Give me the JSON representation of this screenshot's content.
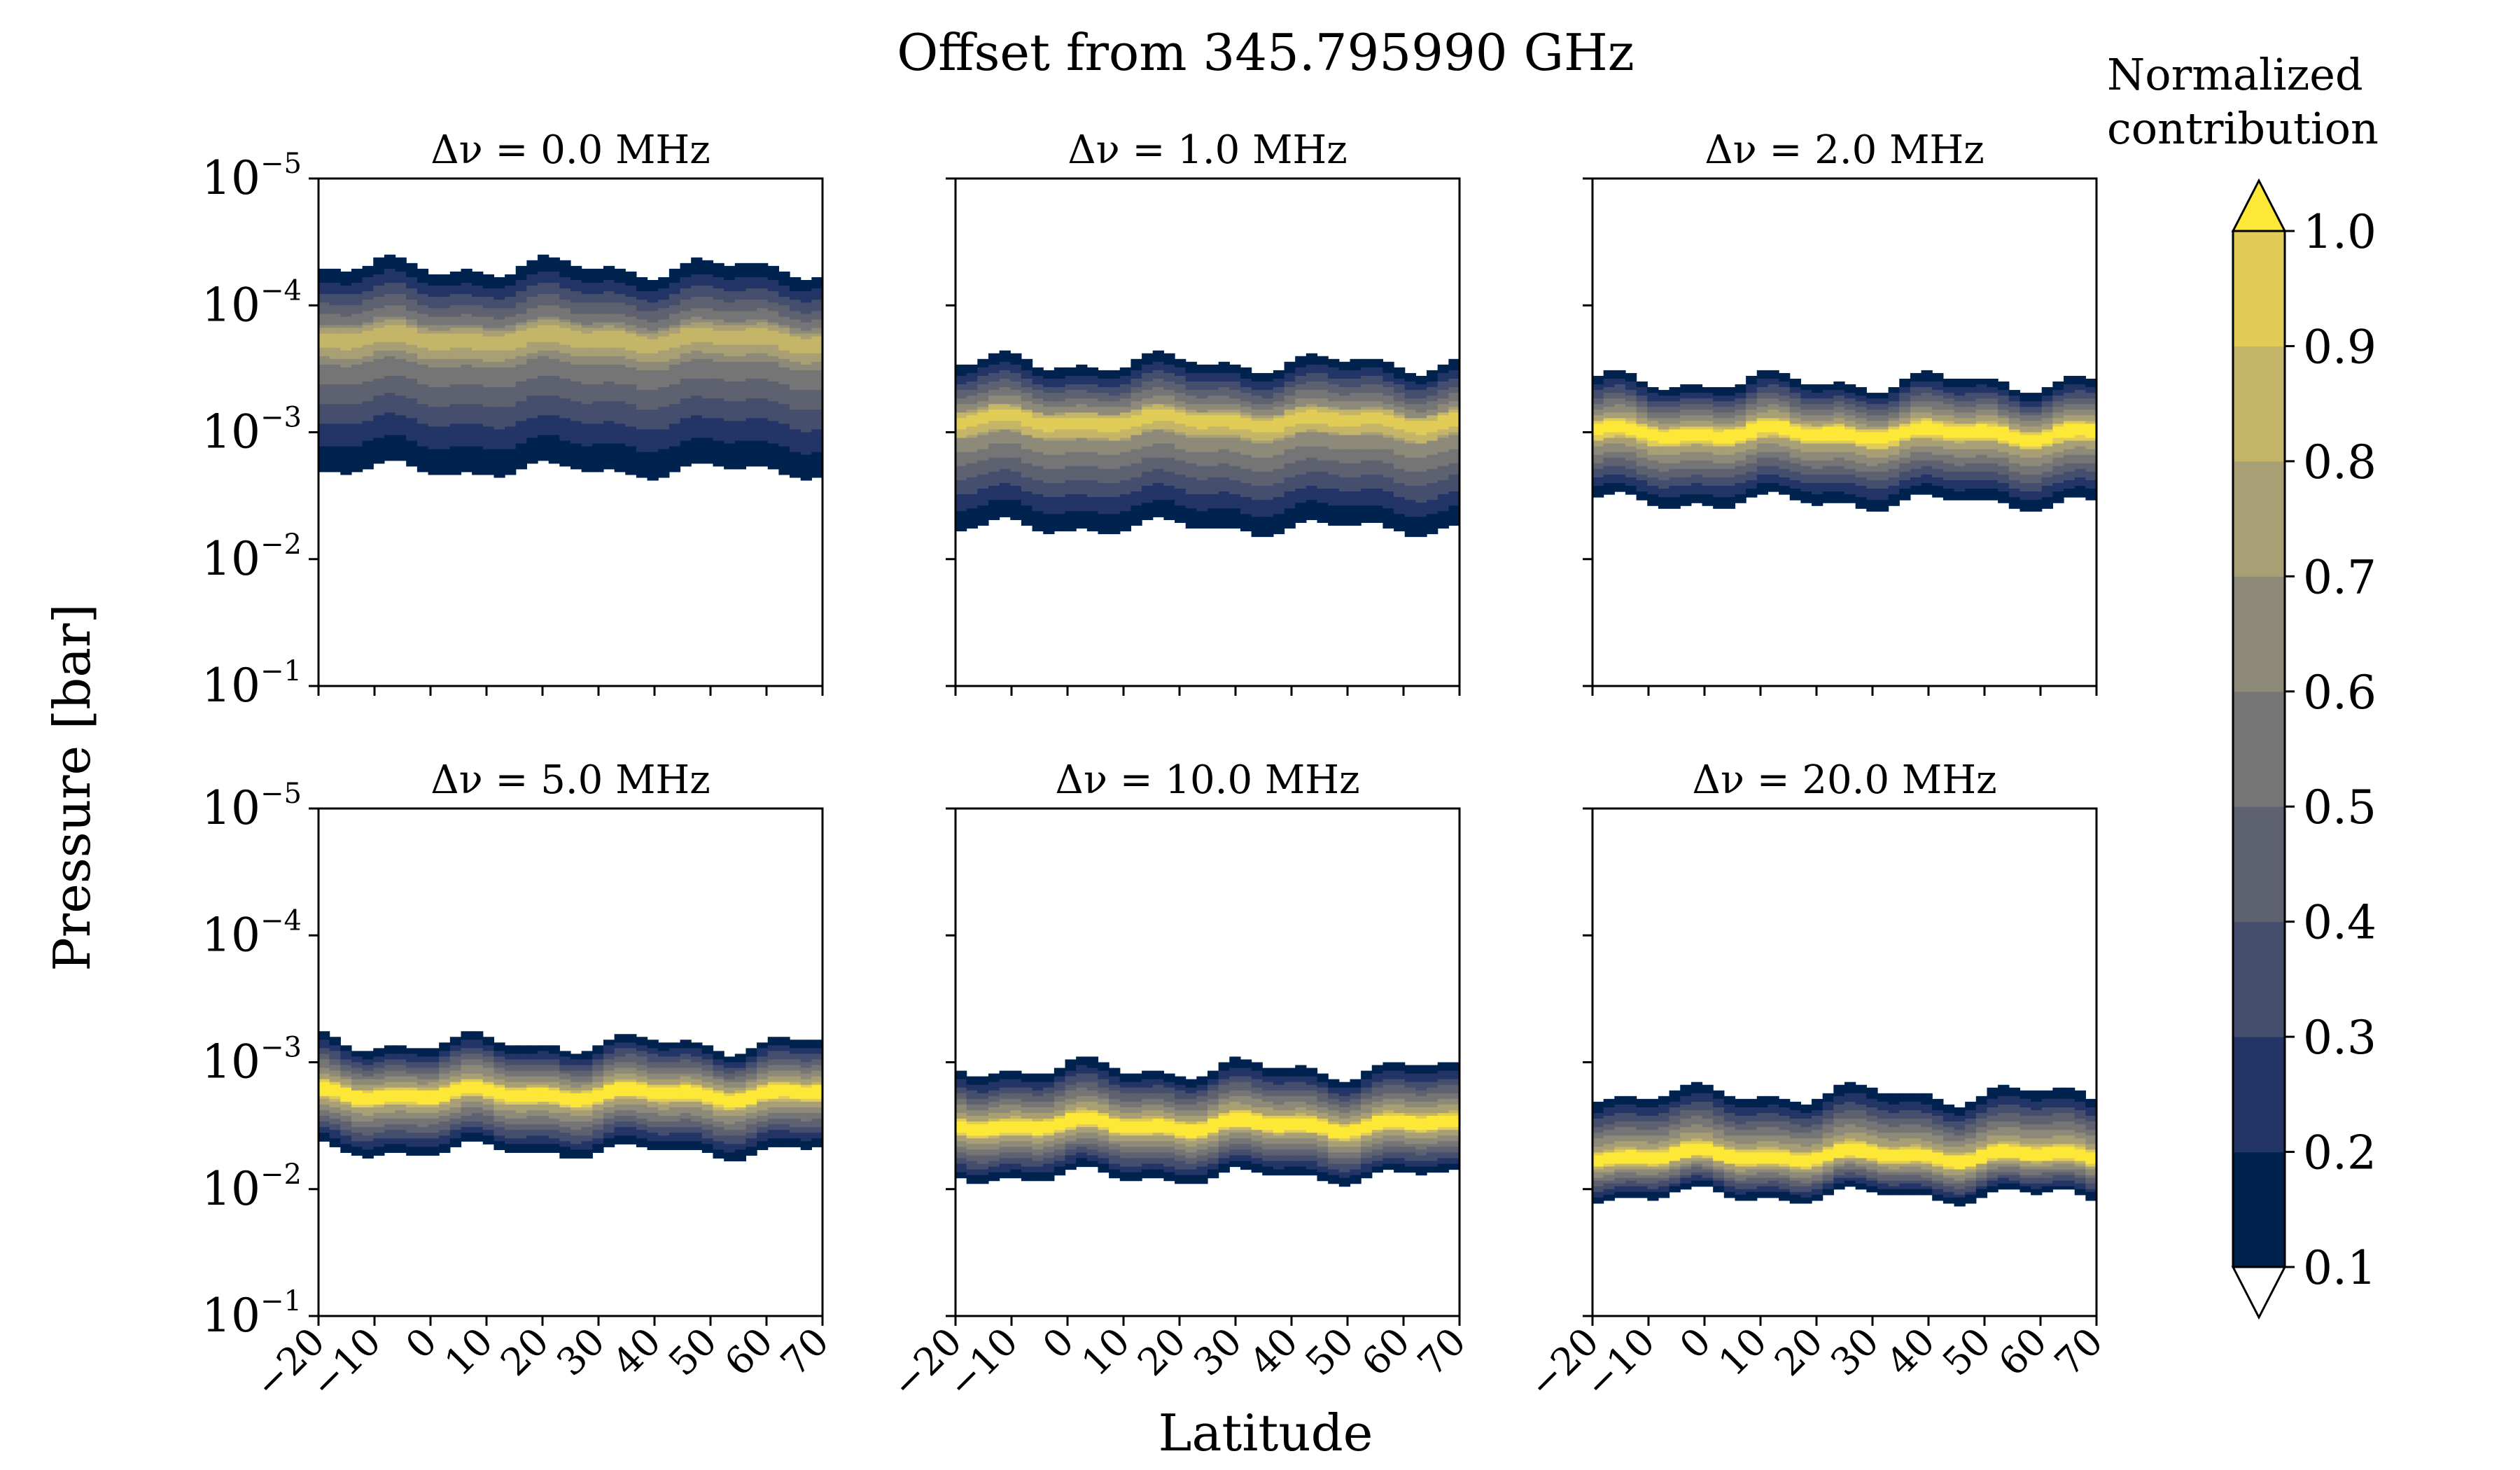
{
  "chart_data": {
    "type": "filled-contour",
    "title": "Offset from 345.795990 GHz",
    "xlabel": "Latitude",
    "ylabel": "Pressure [bar]",
    "x_ticks": [
      "−20",
      "−10",
      "0",
      "10",
      "20",
      "30",
      "40",
      "50",
      "60",
      "70"
    ],
    "y_scale": "log",
    "y_ticks": [
      {
        "base": "10",
        "exp": "−5",
        "value": 1e-05
      },
      {
        "base": "10",
        "exp": "−4",
        "value": 0.0001
      },
      {
        "base": "10",
        "exp": "−3",
        "value": 0.001
      },
      {
        "base": "10",
        "exp": "−2",
        "value": 0.01
      },
      {
        "base": "10",
        "exp": "−1",
        "value": 0.1
      }
    ],
    "ylim": [
      0.1,
      1e-05
    ],
    "xlim": [
      -20,
      70
    ],
    "panels": [
      {
        "title": "Δν = 0.0 MHz",
        "offset_mhz": 0.0,
        "peak_log10_p": -3.75,
        "half_width_dex": 0.6,
        "low_edge_log10_p": -4.3,
        "high_edge_log10_p": -2.7,
        "core_contrast": 0.72
      },
      {
        "title": "Δν = 1.0 MHz",
        "offset_mhz": 1.0,
        "peak_log10_p": -3.1,
        "half_width_dex": 0.45,
        "low_edge_log10_p": -3.55,
        "high_edge_log10_p": -2.25,
        "core_contrast": 0.82
      },
      {
        "title": "Δν = 2.0 MHz",
        "offset_mhz": 2.0,
        "peak_log10_p": -3.0,
        "half_width_dex": 0.4,
        "low_edge_log10_p": -3.4,
        "high_edge_log10_p": -2.45,
        "core_contrast": 0.95
      },
      {
        "title": "Δν = 5.0 MHz",
        "offset_mhz": 5.0,
        "peak_log10_p": -2.75,
        "half_width_dex": 0.4,
        "low_edge_log10_p": -3.15,
        "high_edge_log10_p": -2.3,
        "core_contrast": 0.97
      },
      {
        "title": "Δν = 10.0 MHz",
        "offset_mhz": 10.0,
        "peak_log10_p": -2.5,
        "half_width_dex": 0.4,
        "low_edge_log10_p": -2.95,
        "high_edge_log10_p": -2.1,
        "core_contrast": 0.97
      },
      {
        "title": "Δν = 20.0 MHz",
        "offset_mhz": 20.0,
        "peak_log10_p": -2.25,
        "half_width_dex": 0.35,
        "low_edge_log10_p": -2.75,
        "high_edge_log10_p": -1.95,
        "core_contrast": 0.97
      }
    ],
    "colorbar": {
      "title_line1": "Normalized",
      "title_line2": "contribution",
      "ticks": [
        "1.0",
        "0.9",
        "0.8",
        "0.7",
        "0.6",
        "0.5",
        "0.4",
        "0.3",
        "0.2",
        "0.1"
      ],
      "levels": [
        0.1,
        0.2,
        0.3,
        0.4,
        0.5,
        0.6,
        0.7,
        0.8,
        0.9,
        1.0
      ],
      "extend": "both",
      "colormap": "cividis",
      "colors": [
        "#00224e",
        "#233466",
        "#454e6d",
        "#5e6170",
        "#757576",
        "#8e8a79",
        "#a89f74",
        "#c4b569",
        "#e2cc58",
        "#fde837"
      ],
      "over_color": "#fde837",
      "under_color": "#ffffff"
    }
  }
}
